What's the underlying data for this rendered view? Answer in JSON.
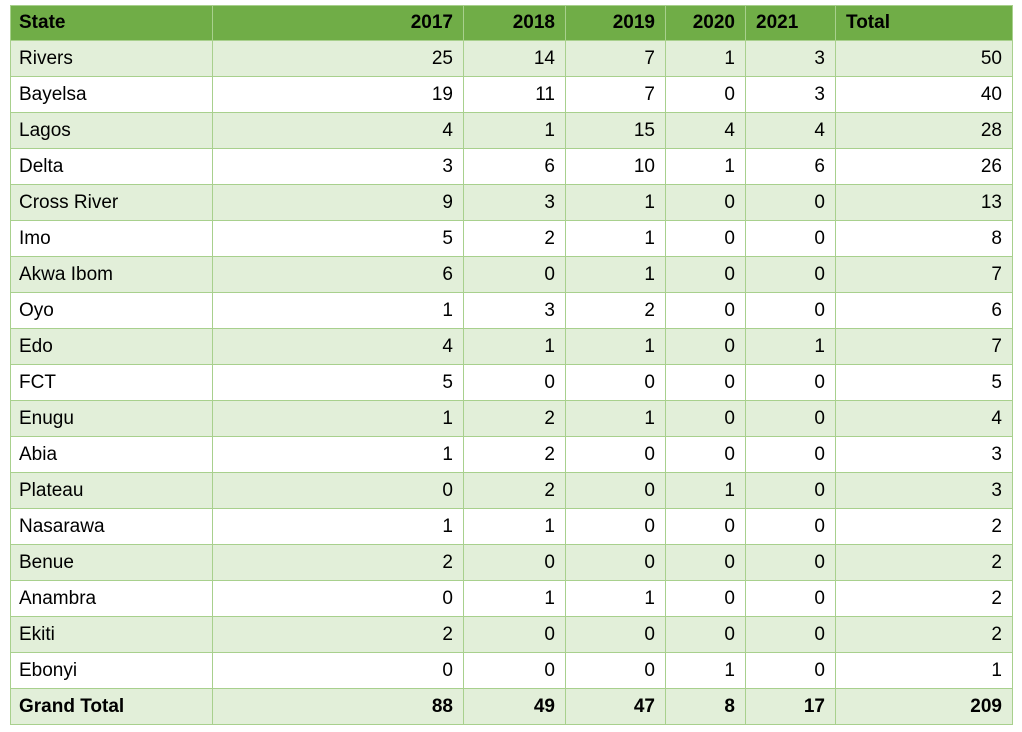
{
  "table": {
    "header": [
      "State",
      "2017",
      "2018",
      "2019",
      "2020",
      "2021",
      "Total"
    ],
    "rows": [
      [
        "Rivers",
        25,
        14,
        7,
        1,
        3,
        50
      ],
      [
        "Bayelsa",
        19,
        11,
        7,
        0,
        3,
        40
      ],
      [
        "Lagos",
        4,
        1,
        15,
        4,
        4,
        28
      ],
      [
        "Delta",
        3,
        6,
        10,
        1,
        6,
        26
      ],
      [
        "Cross River",
        9,
        3,
        1,
        0,
        0,
        13
      ],
      [
        "Imo",
        5,
        2,
        1,
        0,
        0,
        8
      ],
      [
        "Akwa Ibom",
        6,
        0,
        1,
        0,
        0,
        7
      ],
      [
        "Oyo",
        1,
        3,
        2,
        0,
        0,
        6
      ],
      [
        "Edo",
        4,
        1,
        1,
        0,
        1,
        7
      ],
      [
        "FCT",
        5,
        0,
        0,
        0,
        0,
        5
      ],
      [
        "Enugu",
        1,
        2,
        1,
        0,
        0,
        4
      ],
      [
        "Abia",
        1,
        2,
        0,
        0,
        0,
        3
      ],
      [
        "Plateau",
        0,
        2,
        0,
        1,
        0,
        3
      ],
      [
        "Nasarawa",
        1,
        1,
        0,
        0,
        0,
        2
      ],
      [
        "Benue",
        2,
        0,
        0,
        0,
        0,
        2
      ],
      [
        "Anambra",
        0,
        1,
        1,
        0,
        0,
        2
      ],
      [
        "Ekiti",
        2,
        0,
        0,
        0,
        0,
        2
      ],
      [
        "Ebonyi",
        0,
        0,
        0,
        1,
        0,
        1
      ]
    ],
    "total": [
      "Grand Total",
      88,
      49,
      47,
      8,
      17,
      209
    ]
  }
}
